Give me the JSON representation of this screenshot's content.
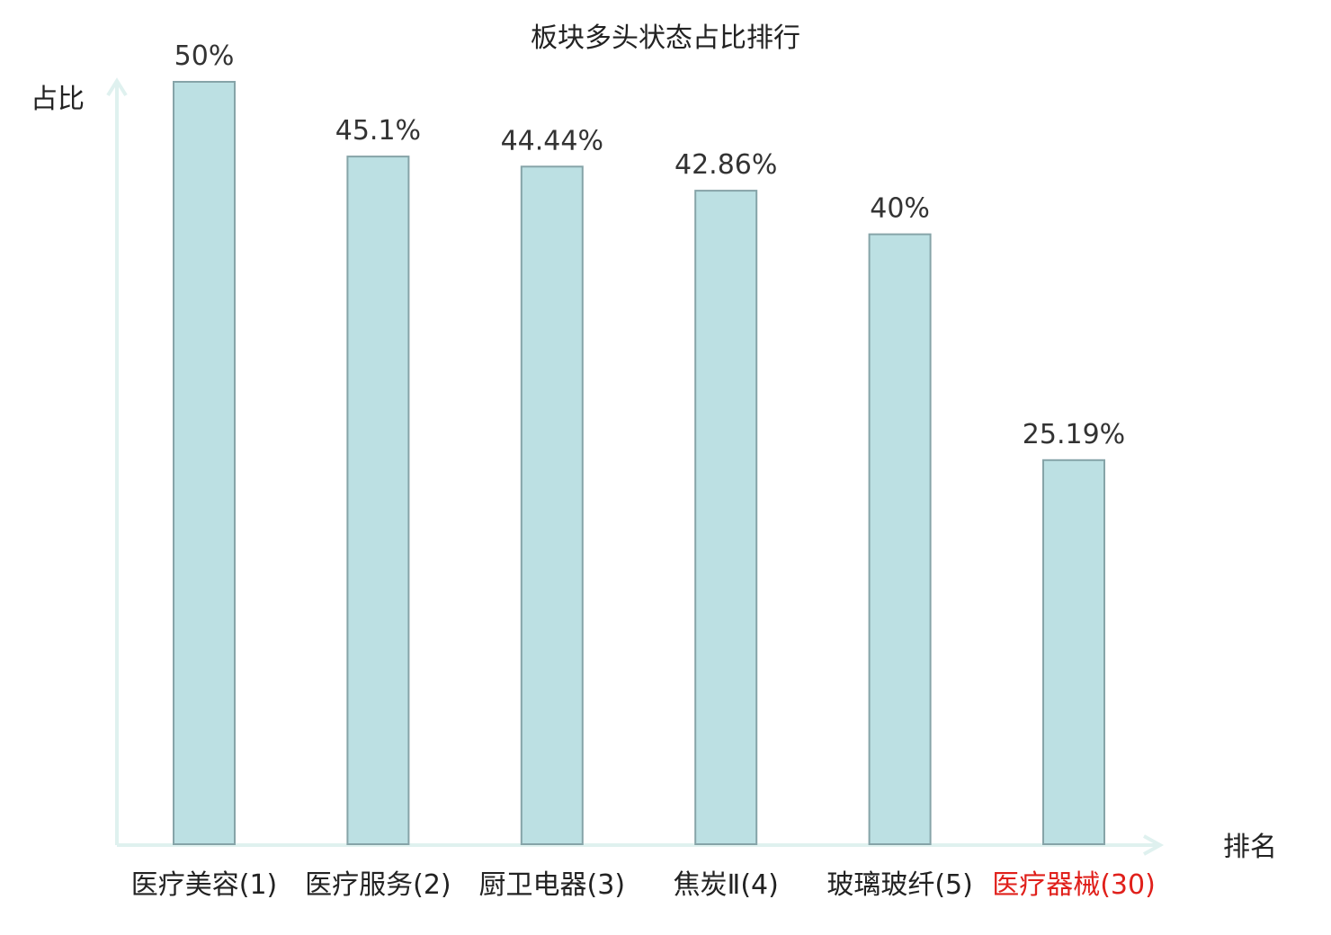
{
  "chart_data": {
    "type": "bar",
    "title": "板块多头状态占比排行",
    "ylabel": "占比",
    "xlabel": "排名",
    "ylim": [
      0,
      50
    ],
    "grid": false,
    "categories": [
      {
        "name": "医疗美容",
        "rank": "(1)",
        "highlight": false
      },
      {
        "name": "医疗服务",
        "rank": "(2)",
        "highlight": false
      },
      {
        "name": "厨卫电器",
        "rank": "(3)",
        "highlight": false
      },
      {
        "name": "焦炭Ⅱ",
        "rank": "(4)",
        "highlight": false
      },
      {
        "name": "玻璃玻纤",
        "rank": "(5)",
        "highlight": false
      },
      {
        "name": "医疗器械",
        "rank": "(30)",
        "highlight": true
      }
    ],
    "values": [
      50,
      45.1,
      44.44,
      42.86,
      40,
      25.19
    ],
    "value_labels": [
      "50%",
      "45.1%",
      "44.44%",
      "42.86%",
      "40%",
      "25.19%"
    ],
    "colors": {
      "bar_fill": "#bce0e3",
      "bar_stroke": "#86a4a8",
      "axis": "#dff1ef",
      "highlight_text": "#e0201b",
      "normal_text": "#222222",
      "value_text": "#333333"
    }
  }
}
